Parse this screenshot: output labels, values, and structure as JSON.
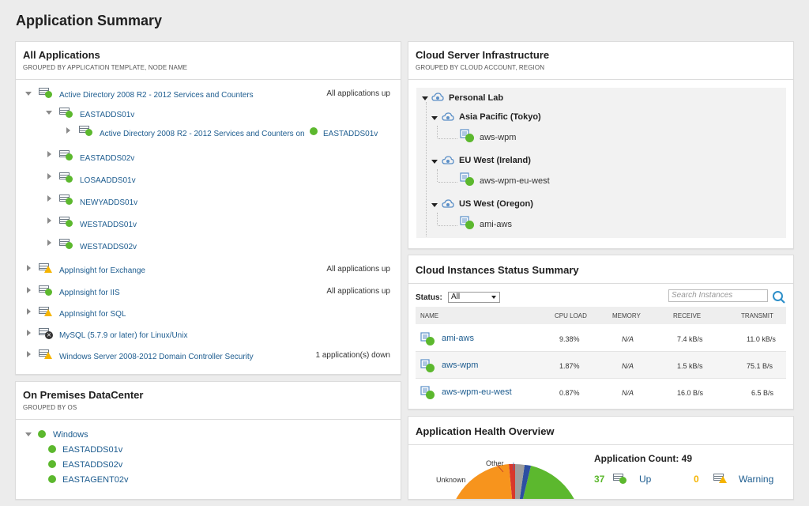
{
  "page": {
    "title": "Application Summary"
  },
  "all_apps": {
    "title": "All Applications",
    "subtitle": "GROUPED BY APPLICATION TEMPLATE, NODE NAME",
    "ad_template": "Active Directory 2008 R2 - 2012 Services and Counters",
    "ad_status": "All applications up",
    "nodes": [
      "EASTADDS01v",
      "EASTADDS02v",
      "LOSAADDS01v",
      "NEWYADDS01v",
      "WESTADDS01v",
      "WESTADDS02v"
    ],
    "ad_child": {
      "label": "Active Directory 2008 R2 - 2012 Services and Counters on",
      "node": "EASTADDS01v"
    },
    "others": [
      {
        "label": "AppInsight for Exchange",
        "status": "All applications up",
        "icon": "warning"
      },
      {
        "label": "AppInsight for IIS",
        "status": "All applications up",
        "icon": "up"
      },
      {
        "label": "AppInsight for SQL",
        "status": "",
        "icon": "warning"
      },
      {
        "label": "MySQL (5.7.9 or later) for Linux/Unix",
        "status": "",
        "icon": "down"
      },
      {
        "label": "Windows Server 2008-2012 Domain Controller Security",
        "status": "1 application(s) down",
        "icon": "warning"
      }
    ]
  },
  "onprem": {
    "title": "On Premises DataCenter",
    "subtitle": "GROUPED BY OS",
    "group": "Windows",
    "nodes": [
      "EASTADDS01v",
      "EASTADDS02v",
      "EASTAGENT02v"
    ]
  },
  "cloud_infra": {
    "title": "Cloud Server Infrastructure",
    "subtitle": "GROUPED BY CLOUD ACCOUNT, REGION",
    "account": "Personal Lab",
    "regions": [
      {
        "name": "Asia Pacific (Tokyo)",
        "instance": "aws-wpm"
      },
      {
        "name": "EU West (Ireland)",
        "instance": "aws-wpm-eu-west"
      },
      {
        "name": "US West (Oregon)",
        "instance": "ami-aws"
      }
    ]
  },
  "instances": {
    "title": "Cloud Instances Status Summary",
    "status_label": "Status:",
    "status_value": "All",
    "search_placeholder": "Search Instances",
    "columns": [
      "NAME",
      "CPU LOAD",
      "MEMORY",
      "RECEIVE",
      "TRANSMIT"
    ],
    "rows": [
      {
        "name": "ami-aws",
        "cpu": "9.38%",
        "mem": "N/A",
        "rx": "7.4 kB/s",
        "tx": "11.0 kB/s"
      },
      {
        "name": "aws-wpm",
        "cpu": "1.87%",
        "mem": "N/A",
        "rx": "1.5 kB/s",
        "tx": "75.1 B/s"
      },
      {
        "name": "aws-wpm-eu-west",
        "cpu": "0.87%",
        "mem": "N/A",
        "rx": "16.0 B/s",
        "tx": "6.5 B/s"
      }
    ]
  },
  "health": {
    "title": "Application Health Overview",
    "count_label": "Application Count: 49",
    "up_count": "37",
    "up_label": "Up",
    "warn_count": "0",
    "warn_label": "Warning",
    "pie_other": "Other",
    "pie_unknown": "Unknown",
    "colors": {
      "up": "#5cb82e",
      "warning": "#f7941d",
      "down": "#d9382b",
      "unknown": "#9e9e9e",
      "other": "#2d4fa1"
    }
  }
}
